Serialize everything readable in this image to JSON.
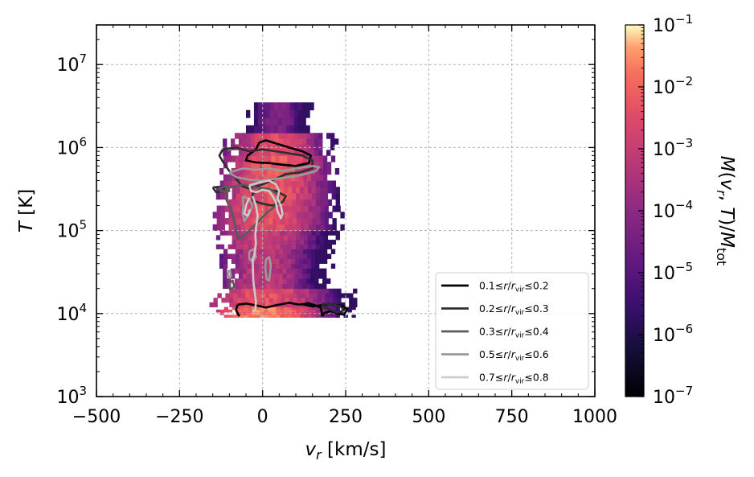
{
  "chart_data": {
    "type": "heatmap",
    "xlabel": "v_r [km/s]",
    "ylabel": "T [K]",
    "colorbar_label": "M(v_r, T)/M_tot",
    "xlim": [
      -500,
      1000
    ],
    "ylim": [
      1000,
      30000000
    ],
    "y_scale": "log",
    "colorbar_scale": "log",
    "colorbar_range": [
      1e-07,
      0.1
    ],
    "colormap": "magma",
    "grid": true,
    "legend_position": "lower-right",
    "x_ticks": [
      {
        "value": -500,
        "label": "−500"
      },
      {
        "value": -250,
        "label": "−250"
      },
      {
        "value": 0,
        "label": "0"
      },
      {
        "value": 250,
        "label": "250"
      },
      {
        "value": 500,
        "label": "500"
      },
      {
        "value": 750,
        "label": "750"
      },
      {
        "value": 1000,
        "label": "1000"
      }
    ],
    "y_ticks": [
      {
        "value": 1000,
        "base": "10",
        "exp": "3"
      },
      {
        "value": 10000,
        "base": "10",
        "exp": "4"
      },
      {
        "value": 100000,
        "base": "10",
        "exp": "5"
      },
      {
        "value": 1000000,
        "base": "10",
        "exp": "6"
      },
      {
        "value": 10000000,
        "base": "10",
        "exp": "7"
      }
    ],
    "colorbar_ticks": [
      {
        "value": 1e-07,
        "base": "10",
        "exp": "−7"
      },
      {
        "value": 1e-06,
        "base": "10",
        "exp": "−6"
      },
      {
        "value": 1e-05,
        "base": "10",
        "exp": "−5"
      },
      {
        "value": 0.0001,
        "base": "10",
        "exp": "−4"
      },
      {
        "value": 0.001,
        "base": "10",
        "exp": "−3"
      },
      {
        "value": 0.01,
        "base": "10",
        "exp": "−2"
      },
      {
        "value": 0.1,
        "base": "10",
        "exp": "−1"
      }
    ],
    "heatmap_rows": [
      {
        "tlow": 9000,
        "thigh": 12000,
        "vmin": -140,
        "vmax": 270,
        "peak_v": 0,
        "peak": 0.02
      },
      {
        "tlow": 12000,
        "thigh": 20000,
        "vmin": -160,
        "vmax": 280,
        "peak_v": 0,
        "peak": 0.004
      },
      {
        "tlow": 20000,
        "thigh": 35000,
        "vmin": -120,
        "vmax": 200,
        "peak_v": 0,
        "peak": 0.0008
      },
      {
        "tlow": 35000,
        "thigh": 60000,
        "vmin": -130,
        "vmax": 210,
        "peak_v": 0,
        "peak": 0.0006
      },
      {
        "tlow": 60000,
        "thigh": 100000,
        "vmin": -140,
        "vmax": 230,
        "peak_v": 0,
        "peak": 0.0012
      },
      {
        "tlow": 100000,
        "thigh": 200000,
        "vmin": -150,
        "vmax": 240,
        "peak_v": 10,
        "peak": 0.004
      },
      {
        "tlow": 200000,
        "thigh": 400000,
        "vmin": -140,
        "vmax": 230,
        "peak_v": 20,
        "peak": 0.006
      },
      {
        "tlow": 400000,
        "thigh": 800000,
        "vmin": -130,
        "vmax": 230,
        "peak_v": 30,
        "peak": 0.007
      },
      {
        "tlow": 800000,
        "thigh": 1500000,
        "vmin": -120,
        "vmax": 220,
        "peak_v": 30,
        "peak": 0.003
      },
      {
        "tlow": 1500000,
        "thigh": 3500000,
        "vmin": -50,
        "vmax": 150,
        "peak_v": 40,
        "peak": 5e-05
      }
    ],
    "series": [
      {
        "name": "0.1 ≤ r/r_vir ≤ 0.2",
        "color": "#000000",
        "label_pre": "0.1≤",
        "label_var": "r",
        "label_sep": "/",
        "label_var2": "r",
        "label_sub": "vir",
        "label_post": "≤0.2",
        "contours": [
          [
            [
              -10,
              1150000
            ],
            [
              10,
              1220000
            ],
            [
              40,
              1120000
            ],
            [
              80,
              1000000
            ],
            [
              120,
              900000
            ],
            [
              145,
              800000
            ],
            [
              140,
              650000
            ],
            [
              100,
              600000
            ],
            [
              60,
              620000
            ],
            [
              20,
              650000
            ],
            [
              -20,
              660000
            ],
            [
              -50,
              700000
            ],
            [
              -45,
              800000
            ],
            [
              -20,
              950000
            ],
            [
              -10,
              1150000
            ]
          ],
          [
            [
              -75,
              12800
            ],
            [
              -50,
              13200
            ],
            [
              -20,
              12600
            ],
            [
              10,
              11800
            ],
            [
              40,
              12600
            ],
            [
              80,
              13500
            ],
            [
              110,
              12800
            ],
            [
              140,
              13300
            ],
            [
              160,
              12500
            ],
            [
              175,
              11800
            ],
            [
              180,
              9300
            ]
          ],
          [
            [
              -75,
              12800
            ],
            [
              -80,
              11000
            ],
            [
              -70,
              9300
            ]
          ],
          [
            [
              120,
              13000
            ],
            [
              150,
              12200
            ],
            [
              200,
              13000
            ],
            [
              240,
              12400
            ],
            [
              255,
              11200
            ],
            [
              245,
              9700
            ],
            [
              225,
              10000
            ],
            [
              205,
              10800
            ],
            [
              185,
              10100
            ],
            [
              180,
              9300
            ]
          ]
        ]
      },
      {
        "name": "0.2 ≤ r/r_vir ≤ 0.3",
        "color": "#2e2e2e",
        "label_pre": "0.2≤",
        "label_var": "r",
        "label_sep": "/",
        "label_var2": "r",
        "label_sub": "vir",
        "label_post": "≤0.3",
        "contours": [
          [
            [
              -120,
              950000
            ],
            [
              -80,
              1000000
            ],
            [
              -40,
              900000
            ],
            [
              0,
              950000
            ],
            [
              40,
              900000
            ],
            [
              80,
              850000
            ],
            [
              120,
              800000
            ],
            [
              150,
              700000
            ],
            [
              150,
              560000
            ],
            [
              110,
              500000
            ],
            [
              70,
              480000
            ],
            [
              40,
              420000
            ],
            [
              0,
              360000
            ],
            [
              -40,
              320000
            ],
            [
              -60,
              340000
            ],
            [
              -80,
              420000
            ],
            [
              -100,
              520000
            ],
            [
              -120,
              680000
            ],
            [
              -130,
              800000
            ],
            [
              -120,
              950000
            ]
          ],
          [
            [
              -30,
              280000
            ],
            [
              0,
              320000
            ],
            [
              40,
              300000
            ],
            [
              70,
              260000
            ],
            [
              60,
              220000
            ],
            [
              30,
              200000
            ],
            [
              0,
              210000
            ],
            [
              -30,
              230000
            ],
            [
              -30,
              280000
            ]
          ],
          [
            [
              -150,
              330000
            ],
            [
              -120,
              340000
            ],
            [
              -110,
              300000
            ],
            [
              -140,
              290000
            ],
            [
              -150,
              330000
            ]
          ],
          [
            [
              180,
              13200
            ],
            [
              210,
              12900
            ],
            [
              235,
              12200
            ],
            [
              245,
              10900
            ],
            [
              225,
              10300
            ],
            [
              200,
              11300
            ],
            [
              180,
              12000
            ],
            [
              180,
              13200
            ]
          ]
        ]
      },
      {
        "name": "0.3 ≤ r/r_vir ≤ 0.4",
        "color": "#5a5a5a",
        "label_pre": "0.3≤",
        "label_var": "r",
        "label_sep": "/",
        "label_var2": "r",
        "label_sub": "vir",
        "label_post": "≤0.4",
        "contours": [
          [
            [
              -110,
              320000
            ],
            [
              -60,
              360000
            ],
            [
              -20,
              330000
            ],
            [
              20,
              320000
            ],
            [
              50,
              260000
            ],
            [
              40,
              200000
            ],
            [
              10,
              160000
            ],
            [
              -20,
              120000
            ],
            [
              -50,
              90000
            ],
            [
              -70,
              80000
            ],
            [
              -80,
              100000
            ],
            [
              -90,
              160000
            ],
            [
              -110,
              240000
            ],
            [
              -110,
              320000
            ]
          ],
          [
            [
              -130,
              330000
            ],
            [
              -105,
              340000
            ],
            [
              -100,
              300000
            ],
            [
              -125,
              295000
            ],
            [
              -130,
              330000
            ]
          ],
          [
            [
              -100,
              23000
            ],
            [
              -90,
              25000
            ],
            [
              -85,
              21000
            ],
            [
              -98,
              19500
            ],
            [
              -100,
              23000
            ]
          ]
        ]
      },
      {
        "name": "0.5 ≤ r/r_vir ≤ 0.6",
        "color": "#9a9a9a",
        "label_pre": "0.5≤",
        "label_var": "r",
        "label_sep": "/",
        "label_var2": "r",
        "label_sub": "vir",
        "label_post": "≤0.6",
        "contours": [
          [
            [
              -100,
              500000
            ],
            [
              -60,
              560000
            ],
            [
              -20,
              540000
            ],
            [
              20,
              560000
            ],
            [
              60,
              520000
            ],
            [
              100,
              560000
            ],
            [
              150,
              600000
            ],
            [
              170,
              580000
            ],
            [
              160,
              520000
            ],
            [
              120,
              470000
            ],
            [
              80,
              440000
            ],
            [
              40,
              420000
            ],
            [
              0,
              400000
            ],
            [
              -40,
              410000
            ],
            [
              -80,
              440000
            ],
            [
              -100,
              500000
            ]
          ],
          [
            [
              -60,
              260000
            ],
            [
              -40,
              240000
            ],
            [
              -30,
              200000
            ],
            [
              -40,
              160000
            ],
            [
              -55,
              130000
            ],
            [
              -60,
              160000
            ],
            [
              -58,
              210000
            ],
            [
              -60,
              260000
            ]
          ],
          [
            [
              -40,
              56000
            ],
            [
              -25,
              60000
            ],
            [
              -20,
              48000
            ],
            [
              -30,
              42000
            ],
            [
              -40,
              46000
            ],
            [
              -40,
              56000
            ]
          ],
          [
            [
              10,
              45000
            ],
            [
              20,
              48000
            ],
            [
              25,
              38000
            ],
            [
              20,
              25000
            ],
            [
              12,
              26000
            ],
            [
              8,
              36000
            ],
            [
              10,
              45000
            ]
          ],
          [
            [
              -105,
              32000
            ],
            [
              -98,
              33000
            ],
            [
              -95,
              28000
            ],
            [
              -102,
              27000
            ],
            [
              -105,
              32000
            ]
          ]
        ]
      },
      {
        "name": "0.7 ≤ r/r_vir ≤ 0.8",
        "color": "#cccccc",
        "label_pre": "0.7≤",
        "label_var": "r",
        "label_sep": "/",
        "label_var2": "r",
        "label_sub": "vir",
        "label_post": "≤0.8",
        "contours": [
          [
            [
              -40,
              350000
            ],
            [
              -10,
              380000
            ],
            [
              20,
              400000
            ],
            [
              40,
              360000
            ],
            [
              50,
              300000
            ],
            [
              45,
              240000
            ],
            [
              55,
              200000
            ],
            [
              60,
              160000
            ],
            [
              55,
              140000
            ],
            [
              45,
              170000
            ],
            [
              40,
              220000
            ],
            [
              30,
              260000
            ],
            [
              20,
              300000
            ],
            [
              0,
              310000
            ],
            [
              -20,
              290000
            ],
            [
              -35,
              300000
            ],
            [
              -40,
              350000
            ]
          ],
          [
            [
              -30,
              260000
            ],
            [
              -20,
              200000
            ],
            [
              -15,
              150000
            ],
            [
              -18,
              120000
            ],
            [
              -22,
              90000
            ],
            [
              -20,
              70000
            ],
            [
              -25,
              50000
            ],
            [
              -30,
              45000
            ],
            [
              -28,
              25000
            ],
            [
              -20,
              14000
            ],
            [
              -22,
              11000
            ],
            [
              -30,
              10500
            ]
          ],
          [
            [
              -40,
              250000
            ],
            [
              -50,
              200000
            ],
            [
              -55,
              160000
            ],
            [
              -45,
              150000
            ],
            [
              -38,
              180000
            ]
          ]
        ]
      }
    ]
  }
}
